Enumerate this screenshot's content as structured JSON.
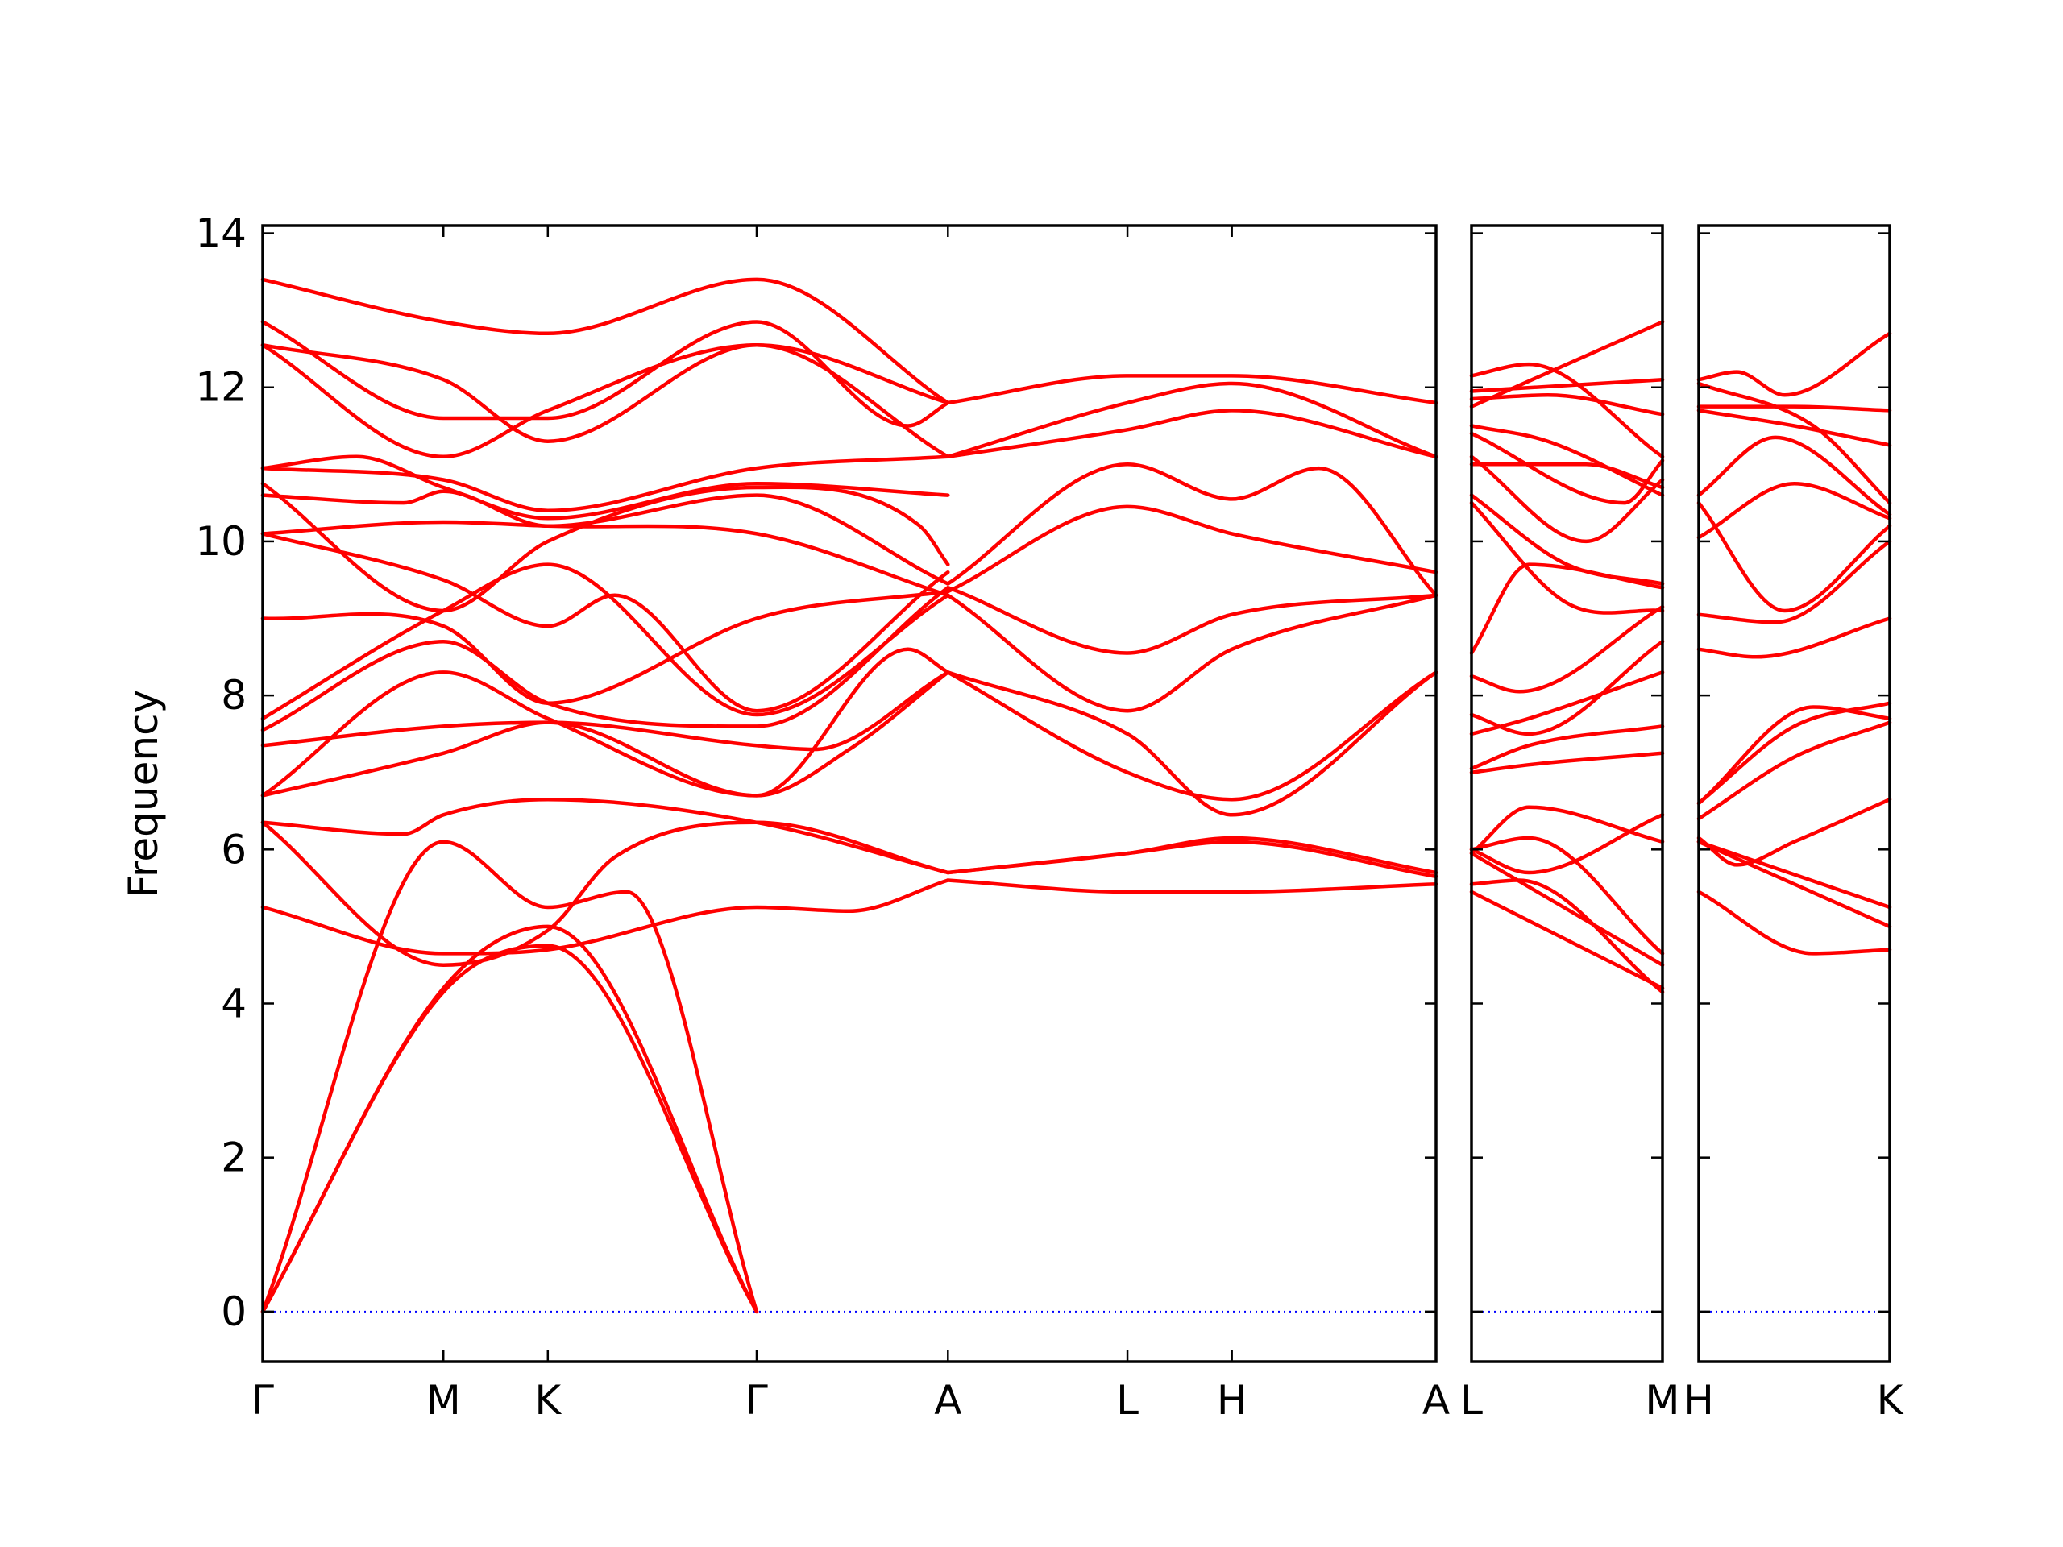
{
  "chart_data": {
    "type": "line",
    "ylabel": "Frequency",
    "ylim": [
      -0.65,
      14.1
    ],
    "yticks": [
      0,
      2,
      4,
      6,
      8,
      10,
      12,
      14
    ],
    "grid": false,
    "colors": {
      "bands": "#ff0000",
      "zero_line": "#0000ff",
      "axes": "#000000"
    },
    "segments": [
      {
        "path": [
          {
            "label": "Γ",
            "x": 0.0
          },
          {
            "label": "M",
            "x": 0.154
          },
          {
            "label": "K",
            "x": 0.243
          },
          {
            "label": "Γ",
            "x": 0.421
          },
          {
            "label": "A",
            "x": 0.584
          },
          {
            "label": "L",
            "x": 0.737
          },
          {
            "label": "H",
            "x": 0.826
          },
          {
            "label": "A",
            "x": 1.0
          }
        ],
        "bands": [
          {
            "x": [
              0,
              0.154,
              0.243,
              0.421
            ],
            "y": [
              0,
              4.15,
              4.75,
              0
            ]
          },
          {
            "x": [
              0,
              0.154,
              0.243,
              0.421
            ],
            "y": [
              0,
              4.2,
              5.0,
              0
            ]
          },
          {
            "x": [
              0,
              0.154,
              0.243,
              0.31,
              0.421
            ],
            "y": [
              0,
              6.1,
              5.25,
              5.45,
              0
            ]
          },
          {
            "x": [
              0,
              0.154,
              0.243,
              0.421,
              0.5,
              0.584
            ],
            "y": [
              5.25,
              4.65,
              4.7,
              5.25,
              5.2,
              5.6
            ]
          },
          {
            "x": [
              0,
              0.12,
              0.154,
              0.243,
              0.421,
              0.584
            ],
            "y": [
              6.35,
              6.2,
              6.45,
              6.65,
              6.35,
              5.7
            ]
          },
          {
            "x": [
              0,
              0.154,
              0.243,
              0.3,
              0.421,
              0.584
            ],
            "y": [
              6.35,
              4.5,
              4.95,
              5.9,
              6.35,
              5.7
            ]
          },
          {
            "x": [
              0,
              0.154,
              0.243,
              0.421,
              0.5,
              0.584
            ],
            "y": [
              6.7,
              7.25,
              7.65,
              6.7,
              7.3,
              8.3
            ]
          },
          {
            "x": [
              0,
              0.154,
              0.243,
              0.421,
              0.55,
              0.584
            ],
            "y": [
              6.7,
              8.3,
              7.7,
              6.7,
              8.6,
              8.3
            ]
          },
          {
            "x": [
              0,
              0.154,
              0.243,
              0.421,
              0.47,
              0.584
            ],
            "y": [
              7.35,
              7.6,
              7.65,
              7.35,
              7.3,
              8.3
            ]
          },
          {
            "x": [
              0,
              0.154,
              0.243,
              0.421,
              0.584
            ],
            "y": [
              7.55,
              8.7,
              7.9,
              7.6,
              9.4
            ]
          },
          {
            "x": [
              0,
              0.154,
              0.243,
              0.421,
              0.584
            ],
            "y": [
              7.7,
              9.1,
              9.7,
              7.75,
              9.3
            ]
          },
          {
            "x": [
              0,
              0.154,
              0.243,
              0.28,
              0.421,
              0.584
            ],
            "y": [
              9.0,
              8.9,
              7.9,
              8.0,
              9.0,
              9.35
            ]
          },
          {
            "x": [
              0,
              0.154,
              0.243,
              0.3,
              0.421,
              0.584
            ],
            "y": [
              10.1,
              9.5,
              8.9,
              9.3,
              7.8,
              9.6
            ]
          },
          {
            "x": [
              0,
              0.154,
              0.243,
              0.421,
              0.584
            ],
            "y": [
              10.1,
              10.25,
              10.2,
              10.1,
              9.3
            ]
          },
          {
            "x": [
              0,
              0.12,
              0.154,
              0.243,
              0.421,
              0.584
            ],
            "y": [
              10.6,
              10.5,
              10.65,
              10.2,
              10.6,
              9.45
            ]
          },
          {
            "x": [
              0,
              0.154,
              0.243,
              0.421,
              0.56,
              0.584
            ],
            "y": [
              10.75,
              9.1,
              10.0,
              10.7,
              10.2,
              9.7
            ]
          },
          {
            "x": [
              0,
              0.154,
              0.243,
              0.421,
              0.584
            ],
            "y": [
              10.95,
              10.8,
              10.4,
              10.95,
              11.1
            ]
          },
          {
            "x": [
              0,
              0.08,
              0.154,
              0.243,
              0.421,
              0.584
            ],
            "y": [
              10.95,
              11.1,
              10.7,
              10.3,
              10.75,
              10.6
            ]
          },
          {
            "x": [
              0,
              0.154,
              0.243,
              0.421,
              0.584
            ],
            "y": [
              12.55,
              11.1,
              11.7,
              12.55,
              11.1
            ]
          },
          {
            "x": [
              0,
              0.154,
              0.243,
              0.421,
              0.584
            ],
            "y": [
              12.55,
              12.1,
              11.3,
              12.55,
              11.8
            ]
          },
          {
            "x": [
              0,
              0.154,
              0.243,
              0.421,
              0.55,
              0.584
            ],
            "y": [
              12.85,
              11.6,
              11.6,
              12.85,
              11.5,
              11.8
            ]
          },
          {
            "x": [
              0,
              0.154,
              0.243,
              0.421,
              0.584
            ],
            "y": [
              13.4,
              12.85,
              12.7,
              13.4,
              11.8
            ]
          },
          {
            "x": [
              0.584,
              0.737,
              0.826,
              1.0
            ],
            "y": [
              5.6,
              5.45,
              5.45,
              5.55
            ]
          },
          {
            "x": [
              0.584,
              0.737,
              0.826,
              1.0
            ],
            "y": [
              5.7,
              5.95,
              6.1,
              5.65
            ]
          },
          {
            "x": [
              0.584,
              0.737,
              0.826,
              1.0
            ],
            "y": [
              5.7,
              5.95,
              6.15,
              5.7
            ]
          },
          {
            "x": [
              0.584,
              0.737,
              0.826,
              1.0
            ],
            "y": [
              8.3,
              7.5,
              6.45,
              8.3
            ]
          },
          {
            "x": [
              0.584,
              0.737,
              0.826,
              1.0
            ],
            "y": [
              8.3,
              7.0,
              6.65,
              8.3
            ]
          },
          {
            "x": [
              0.584,
              0.737,
              0.826,
              1.0
            ],
            "y": [
              9.3,
              7.8,
              8.6,
              9.3
            ]
          },
          {
            "x": [
              0.584,
              0.737,
              0.826,
              1.0
            ],
            "y": [
              9.4,
              8.55,
              9.05,
              9.3
            ]
          },
          {
            "x": [
              0.584,
              0.737,
              0.826,
              1.0
            ],
            "y": [
              9.35,
              10.45,
              10.1,
              9.6
            ]
          },
          {
            "x": [
              0.584,
              0.737,
              0.826,
              0.9,
              1.0
            ],
            "y": [
              9.45,
              11.0,
              10.55,
              10.95,
              9.3
            ]
          },
          {
            "x": [
              0.584,
              0.737,
              0.826,
              1.0
            ],
            "y": [
              11.1,
              11.45,
              11.7,
              11.1
            ]
          },
          {
            "x": [
              0.584,
              0.737,
              0.826,
              1.0
            ],
            "y": [
              11.1,
              11.8,
              12.05,
              11.1
            ]
          },
          {
            "x": [
              0.584,
              0.737,
              0.826,
              1.0
            ],
            "y": [
              11.8,
              12.15,
              12.15,
              11.8
            ]
          }
        ]
      },
      {
        "path": [
          {
            "label": "L",
            "x": 0.0
          },
          {
            "label": "M",
            "x": 1.0
          }
        ],
        "bands": [
          {
            "x": [
              0,
              1
            ],
            "y": [
              5.45,
              4.2
            ]
          },
          {
            "x": [
              0,
              0.25,
              1
            ],
            "y": [
              5.55,
              5.6,
              4.15
            ]
          },
          {
            "x": [
              0,
              1
            ],
            "y": [
              5.95,
              4.5
            ]
          },
          {
            "x": [
              0,
              0.3,
              1
            ],
            "y": [
              6.0,
              6.15,
              4.65
            ]
          },
          {
            "x": [
              0,
              0.3,
              1
            ],
            "y": [
              5.95,
              6.55,
              6.1
            ]
          },
          {
            "x": [
              0,
              0.3,
              1
            ],
            "y": [
              6.0,
              5.7,
              6.45
            ]
          },
          {
            "x": [
              0,
              0.3,
              1
            ],
            "y": [
              7.0,
              7.1,
              7.25
            ]
          },
          {
            "x": [
              0,
              0.3,
              1
            ],
            "y": [
              7.05,
              7.35,
              7.6
            ]
          },
          {
            "x": [
              0,
              0.3,
              1
            ],
            "y": [
              7.5,
              7.7,
              8.3
            ]
          },
          {
            "x": [
              0,
              0.3,
              1
            ],
            "y": [
              7.75,
              7.5,
              8.7
            ]
          },
          {
            "x": [
              0,
              0.25,
              1
            ],
            "y": [
              8.25,
              8.05,
              9.15
            ]
          },
          {
            "x": [
              0,
              0.3,
              1
            ],
            "y": [
              8.55,
              9.7,
              9.4
            ]
          },
          {
            "x": [
              0,
              0.5,
              1
            ],
            "y": [
              10.5,
              9.2,
              9.1
            ]
          },
          {
            "x": [
              0,
              0.5,
              1
            ],
            "y": [
              10.6,
              9.7,
              9.45
            ]
          },
          {
            "x": [
              0,
              0.6,
              1
            ],
            "y": [
              11.0,
              11.0,
              10.7
            ]
          },
          {
            "x": [
              0,
              0.6,
              1
            ],
            "y": [
              11.1,
              10.0,
              10.8
            ]
          },
          {
            "x": [
              0,
              0.8,
              1
            ],
            "y": [
              11.4,
              10.5,
              11.05
            ]
          },
          {
            "x": [
              0,
              0.4,
              1
            ],
            "y": [
              11.5,
              11.3,
              10.6
            ]
          },
          {
            "x": [
              0,
              0.4,
              1
            ],
            "y": [
              11.85,
              11.9,
              11.65
            ]
          },
          {
            "x": [
              0,
              1
            ],
            "y": [
              11.95,
              12.1
            ]
          },
          {
            "x": [
              0,
              0.3,
              1
            ],
            "y": [
              12.15,
              12.3,
              11.1
            ]
          },
          {
            "x": [
              0,
              1
            ],
            "y": [
              11.75,
              12.85
            ]
          }
        ]
      },
      {
        "path": [
          {
            "label": "H",
            "x": 0.0
          },
          {
            "label": "K",
            "x": 1.0
          }
        ],
        "bands": [
          {
            "x": [
              0,
              0.6,
              1
            ],
            "y": [
              5.45,
              4.65,
              4.7
            ]
          },
          {
            "x": [
              0,
              1
            ],
            "y": [
              6.1,
              5.0
            ]
          },
          {
            "x": [
              0,
              1
            ],
            "y": [
              6.1,
              5.25
            ]
          },
          {
            "x": [
              0,
              0.2,
              0.5,
              1
            ],
            "y": [
              6.15,
              5.8,
              6.1,
              6.65
            ]
          },
          {
            "x": [
              0,
              0.5,
              1
            ],
            "y": [
              6.4,
              7.2,
              7.65
            ]
          },
          {
            "x": [
              0,
              0.6,
              1
            ],
            "y": [
              6.6,
              7.85,
              7.7
            ]
          },
          {
            "x": [
              0,
              0.5,
              1
            ],
            "y": [
              6.6,
              7.6,
              7.9
            ]
          },
          {
            "x": [
              0,
              0.3,
              1
            ],
            "y": [
              8.6,
              8.5,
              9.0
            ]
          },
          {
            "x": [
              0,
              0.4,
              1
            ],
            "y": [
              9.05,
              8.95,
              10.0
            ]
          },
          {
            "x": [
              0,
              0.45,
              1
            ],
            "y": [
              10.5,
              9.1,
              10.2
            ]
          },
          {
            "x": [
              0,
              0.5,
              1
            ],
            "y": [
              10.05,
              10.75,
              10.3
            ]
          },
          {
            "x": [
              0,
              0.4,
              1
            ],
            "y": [
              10.6,
              11.35,
              10.35
            ]
          },
          {
            "x": [
              0,
              0.5,
              1
            ],
            "y": [
              11.7,
              11.5,
              11.25
            ]
          },
          {
            "x": [
              0,
              0.5,
              1
            ],
            "y": [
              11.75,
              11.75,
              11.7
            ]
          },
          {
            "x": [
              0,
              0.6,
              1
            ],
            "y": [
              12.05,
              11.5,
              10.5
            ]
          },
          {
            "x": [
              0,
              0.2,
              0.45,
              1
            ],
            "y": [
              12.1,
              12.2,
              11.9,
              12.7
            ]
          }
        ]
      }
    ]
  }
}
